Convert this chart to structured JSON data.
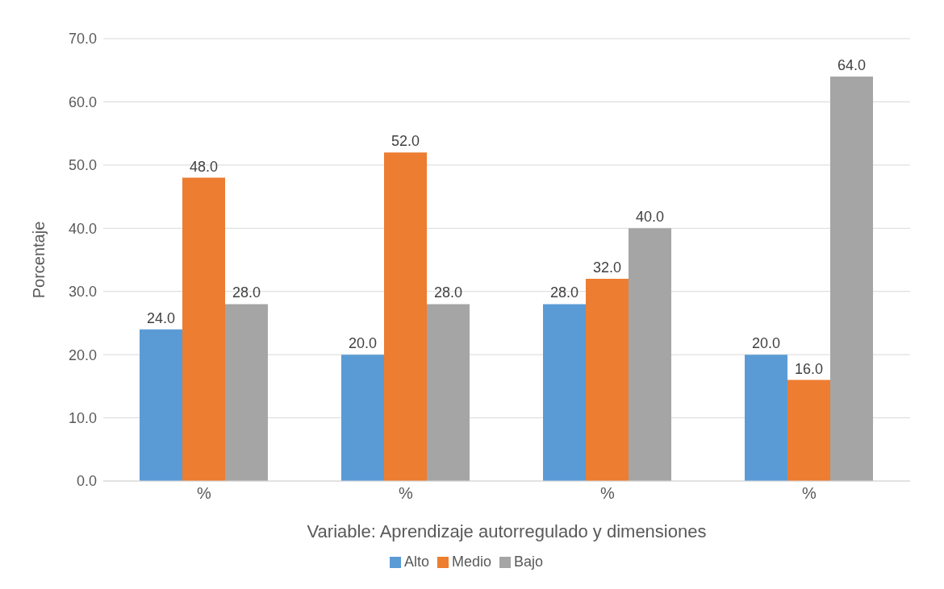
{
  "chart_data": {
    "type": "bar",
    "xlabel": "Variable: Aprendizaje autorregulado y dimensiones",
    "ylabel": "Porcentaje",
    "categories": [
      "%",
      "%",
      "%",
      "%"
    ],
    "series": [
      {
        "name": "Alto",
        "color": "#5b9bd5",
        "values": [
          24,
          20,
          28,
          20
        ],
        "value_labels": [
          "24.0",
          "20.0",
          "28.0",
          "20.0"
        ]
      },
      {
        "name": "Medio",
        "color": "#ed7d31",
        "values": [
          48,
          52,
          32,
          16
        ],
        "value_labels": [
          "48.0",
          "52.0",
          "32.0",
          "16.0"
        ]
      },
      {
        "name": "Bajo",
        "color": "#a5a5a5",
        "values": [
          28,
          28,
          40,
          64
        ],
        "value_labels": [
          "28.0",
          "28.0",
          "40.0",
          "64.0"
        ]
      }
    ],
    "ylim": [
      0,
      70
    ],
    "yticks": [
      {
        "value": 0,
        "label": "0.0"
      },
      {
        "value": 10,
        "label": "10.0"
      },
      {
        "value": 20,
        "label": "20.0"
      },
      {
        "value": 30,
        "label": "30.0"
      },
      {
        "value": 40,
        "label": "40.0"
      },
      {
        "value": 50,
        "label": "50.0"
      },
      {
        "value": 60,
        "label": "60.0"
      },
      {
        "value": 70,
        "label": "70.0"
      }
    ],
    "grid": "y",
    "legend": "bottom"
  }
}
